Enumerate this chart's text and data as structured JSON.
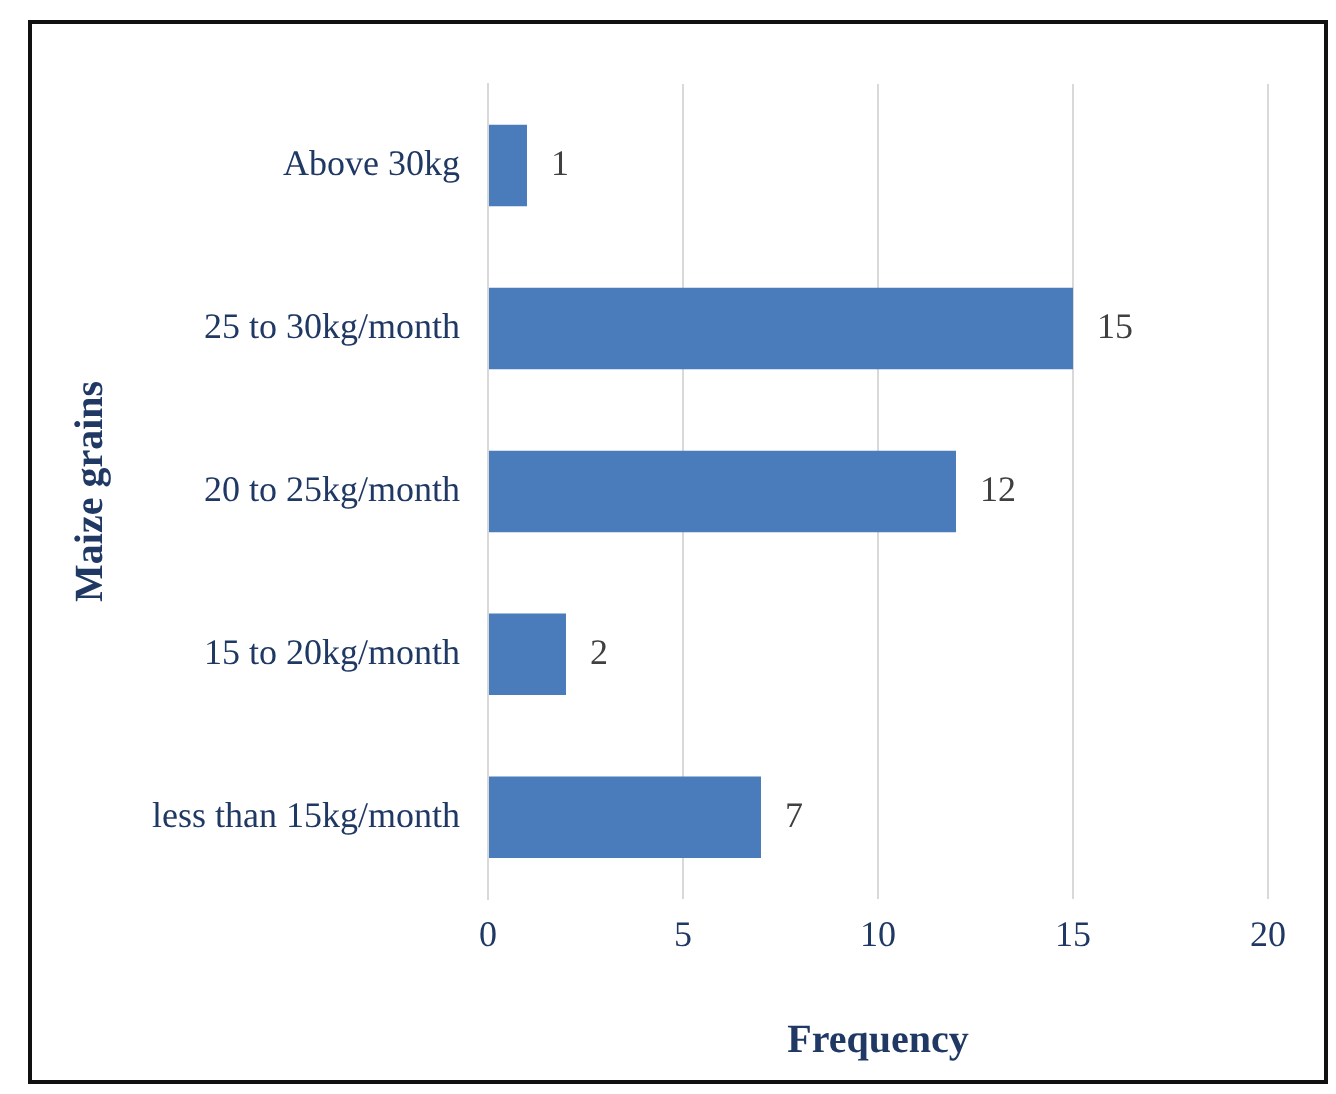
{
  "chart_data": {
    "type": "bar",
    "orientation": "horizontal",
    "categories": [
      "Above 30kg",
      "25 to 30kg/month",
      "20 to 25kg/month",
      "15 to 20kg/month",
      "less than 15kg/month"
    ],
    "values": [
      1,
      15,
      12,
      2,
      7
    ],
    "color": "#4a7cbb",
    "xlim": [
      0,
      20
    ],
    "xticks": [
      0,
      5,
      10,
      15,
      20
    ],
    "grid": "x",
    "data_labels": true,
    "xlabel": "Frequency",
    "ylabel": "Maize grains"
  }
}
